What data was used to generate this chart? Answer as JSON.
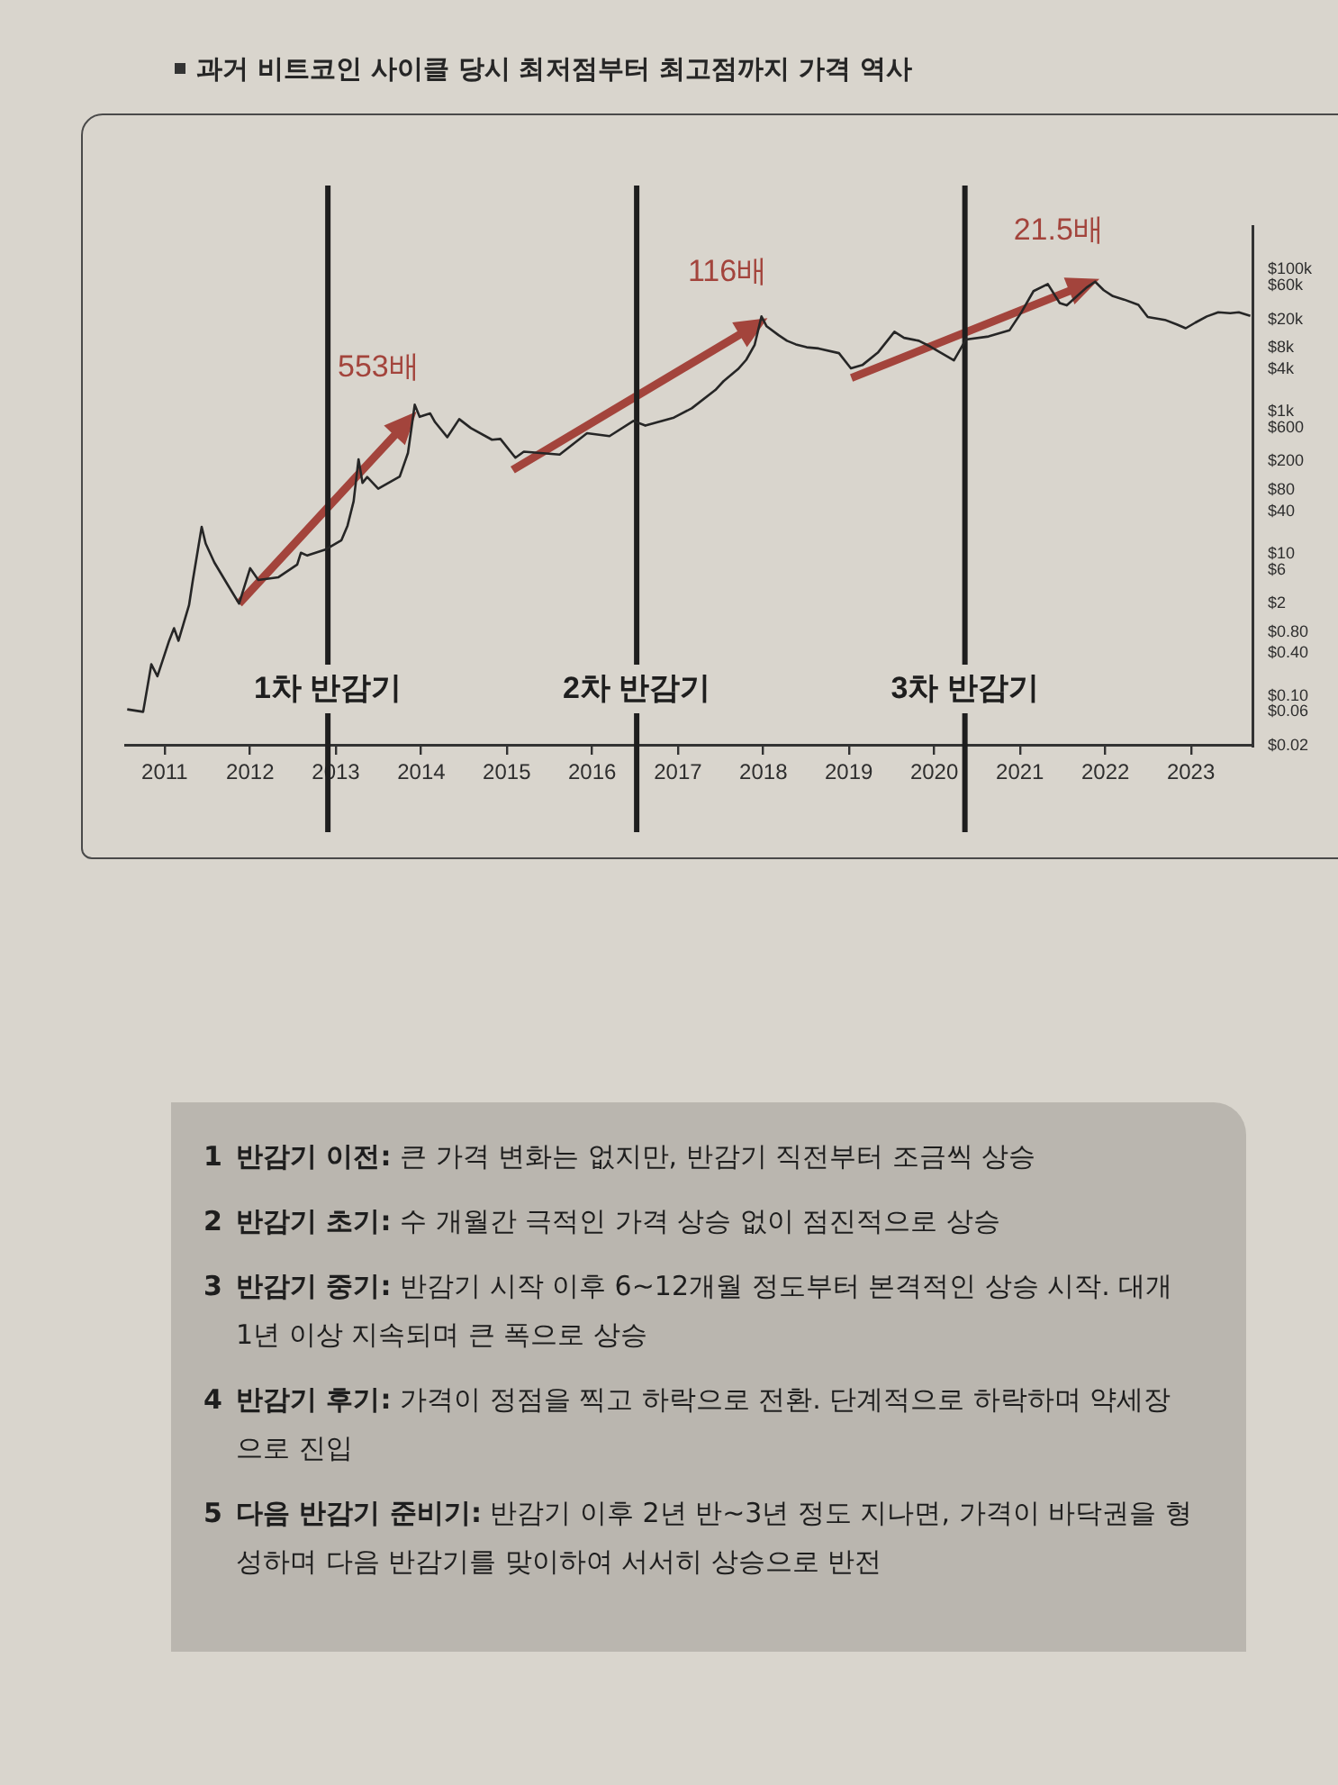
{
  "chart_data": {
    "type": "line",
    "title": "과거 비트코인 사이클 당시 최저점부터 최고점까지 가격 역사",
    "x": [
      "2010-07-25",
      "2010-10-01",
      "2010-11-05",
      "2010-12-01",
      "2011-01-20",
      "2011-02-10",
      "2011-03-01",
      "2011-04-15",
      "2011-05-01",
      "2011-06-08",
      "2011-06-25",
      "2011-08-01",
      "2011-10-01",
      "2011-11-15",
      "2012-01-01",
      "2012-02-05",
      "2012-05-01",
      "2012-07-20",
      "2012-08-05",
      "2012-09-01",
      "2012-11-20",
      "2013-01-25",
      "2013-02-20",
      "2013-03-18",
      "2013-04-08",
      "2013-04-25",
      "2013-05-15",
      "2013-07-01",
      "2013-10-01",
      "2013-11-05",
      "2013-12-04",
      "2013-12-25",
      "2014-02-08",
      "2014-03-01",
      "2014-04-22",
      "2014-06-12",
      "2014-08-01",
      "2014-10-30",
      "2014-12-05",
      "2015-02-07",
      "2015-03-15",
      "2015-08-15",
      "2015-12-10",
      "2016-03-15",
      "2016-06-25",
      "2016-08-15",
      "2016-12-15",
      "2017-03-01",
      "2017-06-10",
      "2017-07-15",
      "2017-09-15",
      "2017-10-20",
      "2017-11-25",
      "2017-12-24",
      "2018-01-15",
      "2018-03-07",
      "2018-04-12",
      "2018-05-20",
      "2018-07-05",
      "2018-08-25",
      "2018-11-20",
      "2019-01-10",
      "2019-02-28",
      "2019-05-05",
      "2019-07-15",
      "2019-08-25",
      "2019-10-27",
      "2019-12-15",
      "2020-03-25",
      "2020-05-15",
      "2020-08-20",
      "2020-11-17",
      "2021-01-08",
      "2021-02-28",
      "2021-04-30",
      "2021-06-20",
      "2021-07-20",
      "2021-10-12",
      "2021-11-18",
      "2021-12-25",
      "2022-02-02",
      "2022-03-22",
      "2022-05-22",
      "2022-07-01",
      "2022-09-12",
      "2022-11-02",
      "2022-12-10",
      "2023-01-20",
      "2023-03-10",
      "2023-04-28",
      "2023-06-18",
      "2023-07-25",
      "2023-09-12"
    ],
    "series": [
      {
        "color": "#262626",
        "values": [
          0.065,
          0.06,
          0.28,
          0.19,
          0.6,
          0.9,
          0.6,
          1.9,
          4.2,
          24,
          14,
          7.6,
          3.5,
          2,
          6.3,
          4.3,
          4.7,
          7.1,
          10.4,
          9.5,
          11.6,
          15.6,
          25,
          55,
          215,
          100,
          121,
          83,
          123,
          263,
          1260,
          850,
          950,
          715,
          440,
          790,
          590,
          405,
          415,
          226,
          275,
          250,
          500,
          455,
          745,
          640,
          830,
          1120,
          2030,
          2700,
          4000,
          5400,
          8800,
          22000,
          16000,
          12000,
          10000,
          8900,
          8100,
          7800,
          6700,
          4100,
          4550,
          6800,
          13400,
          11000,
          10000,
          8300,
          5300,
          10400,
          11500,
          14000,
          25400,
          50000,
          63000,
          34000,
          31500,
          56000,
          68000,
          51500,
          42500,
          38000,
          32000,
          21600,
          19700,
          17000,
          15000,
          18000,
          22000,
          25200,
          24500,
          25200,
          22400
        ]
      }
    ],
    "xlim": [
      "2010-07-20",
      "2023-09-25"
    ],
    "xticks": [
      "2011",
      "2012",
      "2013",
      "2014",
      "2015",
      "2016",
      "2017",
      "2018",
      "2019",
      "2020",
      "2021",
      "2022",
      "2023"
    ],
    "ylim": [
      0.02,
      400000
    ],
    "yticks": [
      {
        "value": 0.02,
        "label": "$0.02"
      },
      {
        "value": 0.06,
        "label": "$0.06"
      },
      {
        "value": 0.1,
        "label": "$0.10"
      },
      {
        "value": 0.4,
        "label": "$0.40"
      },
      {
        "value": 0.8,
        "label": "$0.80"
      },
      {
        "value": 2,
        "label": "$2"
      },
      {
        "value": 6,
        "label": "$6"
      },
      {
        "value": 10,
        "label": "$10"
      },
      {
        "value": 40,
        "label": "$40"
      },
      {
        "value": 80,
        "label": "$80"
      },
      {
        "value": 200,
        "label": "$200"
      },
      {
        "value": 600,
        "label": "$600"
      },
      {
        "value": 1000,
        "label": "$1k"
      },
      {
        "value": 4000,
        "label": "$4k"
      },
      {
        "value": 8000,
        "label": "$8k"
      },
      {
        "value": 20000,
        "label": "$20k"
      },
      {
        "value": 60000,
        "label": "$60k"
      },
      {
        "value": 100000,
        "label": "$100k"
      }
    ],
    "log": "y",
    "marker": "none",
    "ref_lines": [
      {
        "axis": "x",
        "value": "2012-11-28",
        "label": "1차 반감기",
        "color": "#1e1e1e"
      },
      {
        "axis": "x",
        "value": "2016-07-09",
        "label": "2차 반감기",
        "color": "#1e1e1e"
      },
      {
        "axis": "x",
        "value": "2020-05-11",
        "label": "3차 반감기",
        "color": "#1e1e1e"
      }
    ],
    "annotations": [
      "553배",
      "116배",
      "21.5배",
      "1 반감기 이전: 큰 가격 변화는 없지만, 반감기 직전부터 조금씩 상승",
      "2 반감기 초기: 수 개월간 극적인 가격 상승 없이 점진적으로 상승",
      "3 반감기 중기: 반감기 시작 이후 6~12개월 정도부터 본격적인 상승 시작. 대개 1년 이상 지속되며 큰 폭으로 상승",
      "4 반감기 후기: 가격이 정점을 찍고 하락으로 전환. 단계적으로 하락하며 약세장으로 진입",
      "5 다음 반감기 준비기: 반감기 이후 2년 반~3년 정도 지나면, 가격이 바닥권을 형성하며 다음 반감기를 맞이하여 서서히 상승으로 반전"
    ]
  }
}
